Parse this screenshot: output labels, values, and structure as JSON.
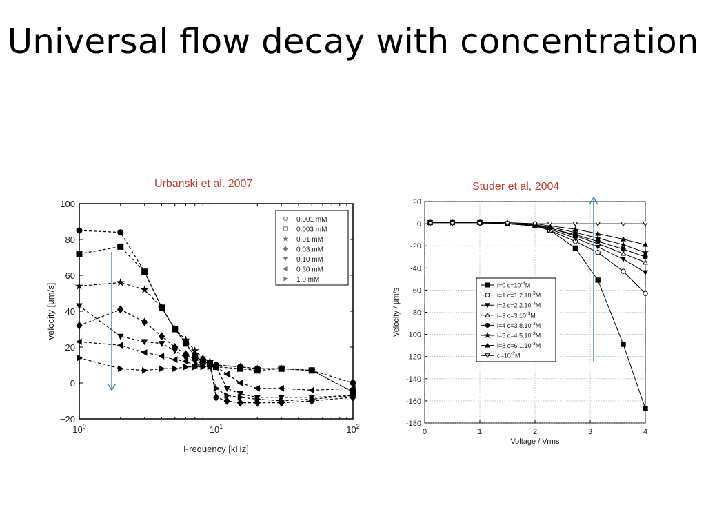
{
  "slide": {
    "title": "Universal flow decay with concentration"
  },
  "captions": {
    "left": "Urbanski et al. 2007",
    "right": "Studer et al, 2004"
  },
  "chart_data": [
    {
      "type": "line",
      "xscale": "log",
      "xlim": [
        1,
        100
      ],
      "ylim": [
        -20,
        100
      ],
      "xlabel": "Frequency [kHz]",
      "ylabel": "velocity [μm/s]",
      "x_ticks": [
        1,
        10,
        100
      ],
      "y_ticks": [
        -20,
        0,
        20,
        40,
        60,
        80,
        100
      ],
      "x_tick_labels": [
        {
          "base": "10",
          "exp": "0"
        },
        {
          "base": "10",
          "exp": "1"
        },
        {
          "base": "10",
          "exp": "2"
        }
      ],
      "y_tick_labels": [
        "−20",
        "0",
        "20",
        "40",
        "60",
        "80",
        "100"
      ],
      "legend_position": "top-right",
      "grid": false,
      "series": [
        {
          "name": "0.001 mM",
          "marker": "circle",
          "x": [
            1,
            2,
            3,
            4,
            5,
            6,
            7,
            8,
            9,
            10,
            15,
            20,
            30,
            50,
            100
          ],
          "y": [
            85,
            84,
            62,
            42,
            30,
            22,
            15,
            12,
            11,
            10,
            9,
            8,
            8,
            7,
            0
          ]
        },
        {
          "name": "0.003 mM",
          "marker": "square",
          "x": [
            1,
            2,
            3,
            4,
            5,
            6,
            7,
            8,
            9,
            10,
            15,
            20,
            30,
            50,
            100
          ],
          "y": [
            72,
            76,
            62,
            42,
            30,
            22,
            15,
            12,
            11,
            9,
            8,
            7,
            8,
            7,
            -5
          ]
        },
        {
          "name": "0.01 mM",
          "marker": "star",
          "x": [
            1,
            2,
            3,
            4,
            5,
            6,
            7,
            8,
            9,
            10,
            15,
            20,
            30,
            50,
            100
          ],
          "y": [
            54,
            56,
            52,
            42,
            30,
            24,
            18,
            14,
            12,
            10,
            9,
            8,
            8,
            7,
            -5
          ]
        },
        {
          "name": "0.03 mM",
          "marker": "diamond",
          "x": [
            1,
            2,
            3,
            4,
            5,
            6,
            7,
            8,
            9,
            10,
            12,
            15,
            20,
            30,
            50,
            100
          ],
          "y": [
            32,
            41,
            34,
            26,
            20,
            16,
            13,
            12,
            11,
            -8,
            -10,
            -11,
            -11,
            -11,
            -10,
            -8
          ]
        },
        {
          "name": "0.10 mM",
          "marker": "triangle-down",
          "x": [
            1,
            2,
            3,
            4,
            5,
            6,
            7,
            8,
            9,
            10,
            12,
            15,
            20,
            30,
            50,
            100
          ],
          "y": [
            43,
            26,
            23,
            22,
            18,
            14,
            12,
            11,
            10,
            9,
            -3,
            -6,
            -8,
            -8,
            -8,
            -7
          ]
        },
        {
          "name": "0.30 mM",
          "marker": "triangle-left",
          "x": [
            1,
            2,
            3,
            4,
            5,
            6,
            7,
            8,
            9,
            10,
            12,
            15,
            20,
            30,
            50,
            100
          ],
          "y": [
            23,
            21,
            17,
            15,
            13,
            12,
            10,
            10,
            9,
            9,
            5,
            0,
            -3,
            -3,
            -4,
            -3
          ]
        },
        {
          "name": "1.0 mM",
          "marker": "triangle-right",
          "x": [
            1,
            2,
            3,
            4,
            5,
            6,
            7,
            8,
            9,
            10,
            12,
            15,
            20,
            30,
            50,
            100
          ],
          "y": [
            14,
            8,
            7,
            8,
            8,
            9,
            9,
            9,
            9,
            -3,
            -7,
            -8,
            -9,
            -10,
            -9,
            -7
          ]
        }
      ]
    },
    {
      "type": "line",
      "xlim": [
        0,
        4
      ],
      "ylim": [
        -180,
        20
      ],
      "xlabel": "Voltage / Vrms",
      "ylabel": "Velocity / μm/s",
      "x_ticks": [
        0,
        1,
        2,
        3,
        4
      ],
      "y_ticks": [
        20,
        0,
        -20,
        -40,
        -60,
        -80,
        -100,
        -120,
        -140,
        -160,
        -180
      ],
      "x_tick_labels": [
        "0",
        "1",
        "2",
        "3",
        "4"
      ],
      "y_tick_labels": [
        "20",
        "0",
        "-20",
        "-40",
        "-60",
        "-80",
        "-100",
        "-120",
        "-140",
        "-160",
        "-180"
      ],
      "legend_position": "center-left",
      "grid": true,
      "series": [
        {
          "label": {
            "i": "i=0",
            "c": "c=10",
            "exp": "-4",
            "unit": "M"
          },
          "marker": "square-filled",
          "x": [
            0.1,
            0.5,
            1.0,
            1.5,
            2.0,
            2.27,
            2.73,
            3.14,
            3.6,
            4.0
          ],
          "y": [
            1,
            1,
            1,
            0,
            -2,
            -6,
            -22,
            -51,
            -109,
            -167
          ]
        },
        {
          "label": {
            "i": "i=1",
            "c": "c=1,2.10",
            "exp": "-3",
            "unit": "M"
          },
          "marker": "circle-open",
          "x": [
            0.1,
            0.5,
            1.0,
            1.5,
            2.0,
            2.27,
            2.73,
            3.14,
            3.6,
            4.0
          ],
          "y": [
            1,
            1,
            1,
            0,
            -2,
            -6,
            -16,
            -26,
            -43,
            -63
          ]
        },
        {
          "label": {
            "i": "i=2",
            "c": "c=2,2.10",
            "exp": "-3",
            "unit": "M"
          },
          "marker": "triangle-down-filled",
          "x": [
            0.1,
            0.5,
            1.0,
            1.5,
            2.0,
            2.27,
            2.73,
            3.14,
            3.6,
            4.0
          ],
          "y": [
            1,
            1,
            1,
            0,
            -2,
            -5,
            -13,
            -21,
            -32,
            -44
          ]
        },
        {
          "label": {
            "i": "i=3",
            "c": "c=3.10",
            "exp": "-3",
            "unit": "M"
          },
          "marker": "triangle-up-open",
          "x": [
            0.1,
            0.5,
            1.0,
            1.5,
            2.0,
            2.27,
            2.73,
            3.14,
            3.6,
            4.0
          ],
          "y": [
            1,
            1,
            1,
            0,
            -2,
            -4,
            -11,
            -18,
            -27,
            -35
          ]
        },
        {
          "label": {
            "i": "i=4",
            "c": "c=3,8.10",
            "exp": "-3",
            "unit": "M"
          },
          "marker": "circle-filled",
          "x": [
            0.1,
            0.5,
            1.0,
            1.5,
            2.0,
            2.27,
            2.73,
            3.14,
            3.6,
            4.0
          ],
          "y": [
            1,
            1,
            1,
            0,
            -1,
            -4,
            -10,
            -16,
            -23,
            -30
          ]
        },
        {
          "label": {
            "i": "i=5",
            "c": "c=4,5.10",
            "exp": "-3",
            "unit": "M"
          },
          "marker": "star",
          "x": [
            0.1,
            0.5,
            1.0,
            1.5,
            2.0,
            2.27,
            2.73,
            3.14,
            3.6,
            4.0
          ],
          "y": [
            1,
            1,
            1,
            0,
            -1,
            -3,
            -8,
            -13,
            -19,
            -26
          ]
        },
        {
          "label": {
            "i": "i=8",
            "c": "c=6,1.10",
            "exp": "-3",
            "unit": "M"
          },
          "marker": "triangle-up-filled",
          "x": [
            0.1,
            0.5,
            1.0,
            1.5,
            2.0,
            2.27,
            2.73,
            3.14,
            3.6,
            4.0
          ],
          "y": [
            1,
            1,
            1,
            1,
            0,
            -2,
            -5,
            -9,
            -14,
            -19
          ]
        },
        {
          "label": {
            "i": "",
            "c": "c=10",
            "exp": "-2",
            "unit": "M"
          },
          "marker": "triangle-down-open",
          "x": [
            0.1,
            0.5,
            1.0,
            1.5,
            2.0,
            2.27,
            2.73,
            3.14,
            3.6,
            4.0
          ],
          "y": [
            0,
            0,
            0,
            0,
            0,
            0,
            0,
            0,
            0,
            0
          ]
        }
      ]
    }
  ]
}
